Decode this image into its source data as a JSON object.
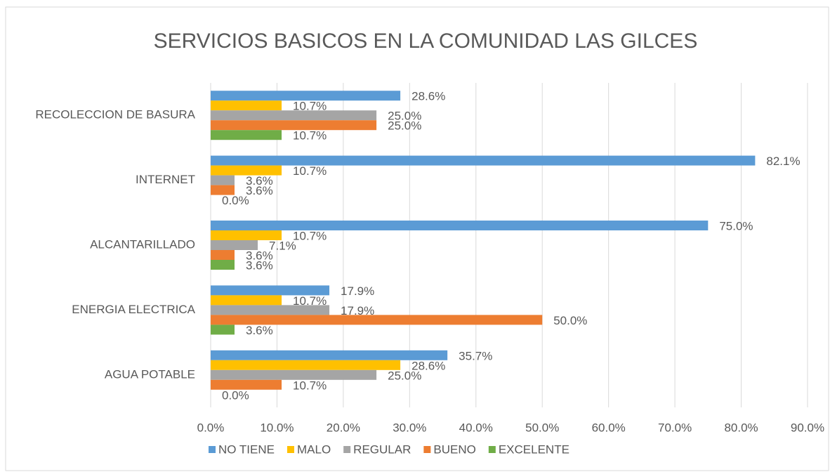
{
  "chart_data": {
    "type": "hbar",
    "title": "SERVICIOS BASICOS EN LA COMUNIDAD LAS GILCES",
    "categories": [
      "AGUA POTABLE",
      "ENERGIA ELECTRICA",
      "ALCANTARILLADO",
      "INTERNET",
      "RECOLECCION DE BASURA"
    ],
    "series": [
      {
        "name": "NO TIENE",
        "color": "#5b9bd5",
        "values": [
          35.7,
          17.9,
          75.0,
          82.1,
          28.6
        ],
        "value_labels": [
          "35.7%",
          "17.9%",
          "75.0%",
          "82.1%",
          "28.6%"
        ]
      },
      {
        "name": "MALO",
        "color": "#ffc000",
        "values": [
          28.6,
          10.7,
          10.7,
          10.7,
          10.7
        ],
        "value_labels": [
          "28.6%",
          "10.7%",
          "10.7%",
          "10.7%",
          "10.7%"
        ]
      },
      {
        "name": "REGULAR",
        "color": "#a5a5a5",
        "values": [
          25.0,
          17.9,
          7.1,
          3.6,
          25.0
        ],
        "value_labels": [
          "25.0%",
          "17.9%",
          "7.1%",
          "3.6%",
          "25.0%"
        ]
      },
      {
        "name": "BUENO",
        "color": "#ed7d31",
        "values": [
          10.7,
          50.0,
          3.6,
          3.6,
          25.0
        ],
        "value_labels": [
          "10.7%",
          "50.0%",
          "3.6%",
          "3.6%",
          "25.0%"
        ]
      },
      {
        "name": "EXCELENTE",
        "color": "#70ad47",
        "values": [
          0.0,
          3.6,
          3.6,
          0.0,
          10.7
        ],
        "value_labels": [
          "0.0%",
          "3.6%",
          "3.6%",
          "0.0%",
          "10.7%"
        ]
      }
    ],
    "xlim": [
      0,
      90
    ],
    "xticks": [
      {
        "value": 0,
        "label": "0.0%"
      },
      {
        "value": 10,
        "label": "10.0%"
      },
      {
        "value": 20,
        "label": "20.0%"
      },
      {
        "value": 30,
        "label": "30.0%"
      },
      {
        "value": 40,
        "label": "40.0%"
      },
      {
        "value": 50,
        "label": "50.0%"
      },
      {
        "value": 60,
        "label": "60.0%"
      },
      {
        "value": 70,
        "label": "70.0%"
      },
      {
        "value": 80,
        "label": "80.0%"
      },
      {
        "value": 90,
        "label": "90.0%"
      }
    ],
    "grid": true,
    "legend": "bottom"
  }
}
